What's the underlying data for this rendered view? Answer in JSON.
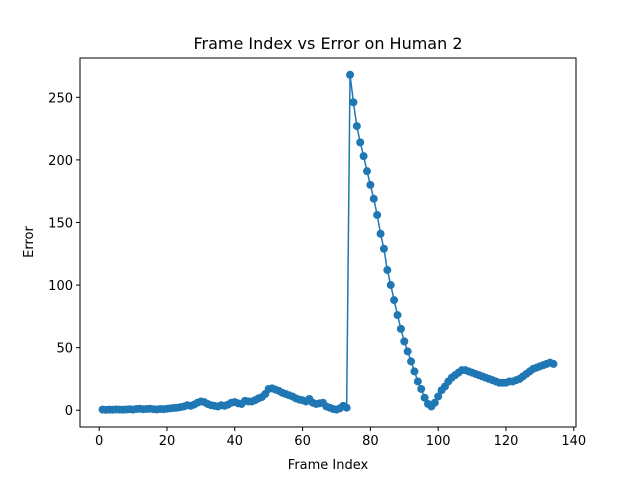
{
  "chart_data": {
    "type": "line",
    "title": "Frame Index vs Error on Human 2",
    "x_label": "Frame Index",
    "y_label": "Error",
    "x": [
      1,
      2,
      3,
      4,
      5,
      6,
      7,
      8,
      9,
      10,
      11,
      12,
      13,
      14,
      15,
      16,
      17,
      18,
      19,
      20,
      21,
      22,
      23,
      24,
      25,
      26,
      27,
      28,
      29,
      30,
      31,
      32,
      33,
      34,
      35,
      36,
      37,
      38,
      39,
      40,
      41,
      42,
      43,
      44,
      45,
      46,
      47,
      48,
      49,
      50,
      51,
      52,
      53,
      54,
      55,
      56,
      57,
      58,
      59,
      60,
      61,
      62,
      63,
      64,
      65,
      66,
      67,
      68,
      69,
      70,
      71,
      72,
      73,
      74,
      75,
      76,
      77,
      78,
      79,
      80,
      81,
      82,
      83,
      84,
      85,
      86,
      87,
      88,
      89,
      90,
      91,
      92,
      93,
      94,
      95,
      96,
      97,
      98,
      99,
      100,
      101,
      102,
      103,
      104,
      105,
      106,
      107,
      108,
      109,
      110,
      111,
      112,
      113,
      114,
      115,
      116,
      117,
      118,
      119,
      120,
      121,
      122,
      123,
      124,
      125,
      126,
      127,
      128,
      129,
      130,
      131,
      132,
      133,
      134
    ],
    "series": [
      {
        "color": "#1f77b4",
        "values": [
          0.5,
          0.3,
          0.5,
          0.4,
          0.6,
          0.5,
          0.4,
          0.6,
          0.8,
          0.5,
          1.0,
          1.2,
          0.8,
          1.0,
          1.2,
          0.8,
          0.6,
          1.0,
          0.8,
          1.2,
          1.5,
          1.8,
          2.0,
          2.5,
          3.0,
          4.0,
          3.5,
          4.5,
          6.0,
          7.0,
          6.5,
          5.0,
          4.0,
          3.5,
          3.0,
          4.0,
          3.5,
          4.5,
          6.0,
          6.5,
          5.5,
          5.0,
          7.5,
          7.0,
          7.0,
          8.0,
          9.5,
          10.5,
          13.0,
          17.0,
          17.5,
          16.5,
          15.5,
          14.0,
          13.0,
          12.0,
          11.0,
          9.5,
          8.5,
          8.0,
          7.0,
          9.0,
          6.0,
          5.0,
          5.5,
          6.0,
          3.0,
          2.0,
          1.0,
          0.5,
          1.5,
          3.5,
          2.0,
          268,
          246,
          227,
          214,
          203,
          191,
          180,
          169,
          156,
          141,
          129,
          112,
          100,
          88,
          76,
          65,
          55,
          47,
          39,
          31,
          23,
          17,
          10,
          5,
          3,
          6,
          11,
          16,
          19,
          23,
          26,
          28,
          30,
          32,
          32,
          31,
          30,
          29,
          28,
          27,
          26,
          25,
          24,
          23,
          22,
          22,
          22,
          23,
          23,
          24,
          25,
          27,
          29,
          31,
          33,
          34,
          35,
          36,
          37,
          38,
          37
        ]
      }
    ],
    "xlim": [
      -5.65,
      140.65
    ],
    "ylim": [
      -13.4,
      281.4
    ],
    "xticks": [
      0,
      20,
      40,
      60,
      80,
      100,
      120,
      140
    ],
    "yticks": [
      0,
      50,
      100,
      150,
      200,
      250
    ]
  }
}
